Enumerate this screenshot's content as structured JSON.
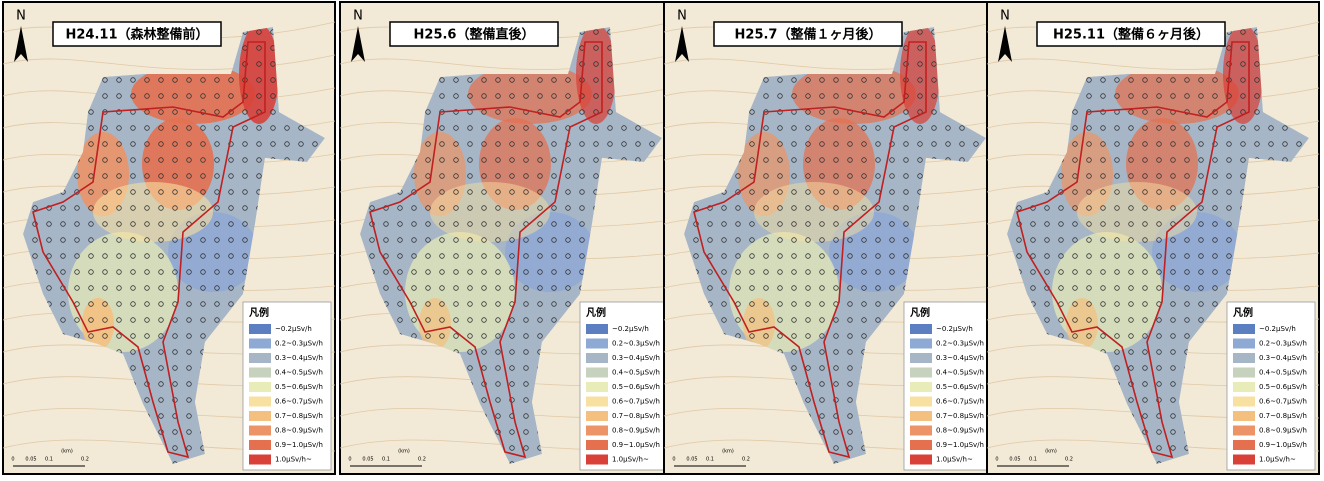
{
  "panels": [
    {
      "title": "H24.11（森林整備前）"
    },
    {
      "title": "H25.6（整備直後）"
    },
    {
      "title": "H25.7（整備１ヶ月後）"
    },
    {
      "title": "H25.11（整備６ヶ月後）"
    }
  ],
  "north": "N",
  "legend": {
    "title": "凡例",
    "items": [
      {
        "label": "~0.2μSv/h",
        "color": "#5b7fc0"
      },
      {
        "label": "0.2~0.3μSv/h",
        "color": "#8ea9d4"
      },
      {
        "label": "0.3~0.4μSv/h",
        "color": "#a6b6c6"
      },
      {
        "label": "0.4~0.5μSv/h",
        "color": "#c6d2be"
      },
      {
        "label": "0.5~0.6μSv/h",
        "color": "#e8ecb8"
      },
      {
        "label": "0.6~0.7μSv/h",
        "color": "#f8e0a0"
      },
      {
        "label": "0.7~0.8μSv/h",
        "color": "#f4c080"
      },
      {
        "label": "0.8~0.9μSv/h",
        "color": "#ec9468"
      },
      {
        "label": "0.9~1.0μSv/h",
        "color": "#e47050"
      },
      {
        "label": "1.0μSv/h~",
        "color": "#d84038"
      }
    ]
  },
  "scale": {
    "unit": "(km)",
    "labels": [
      "0",
      "0.05",
      "0.1",
      "0.2"
    ]
  }
}
